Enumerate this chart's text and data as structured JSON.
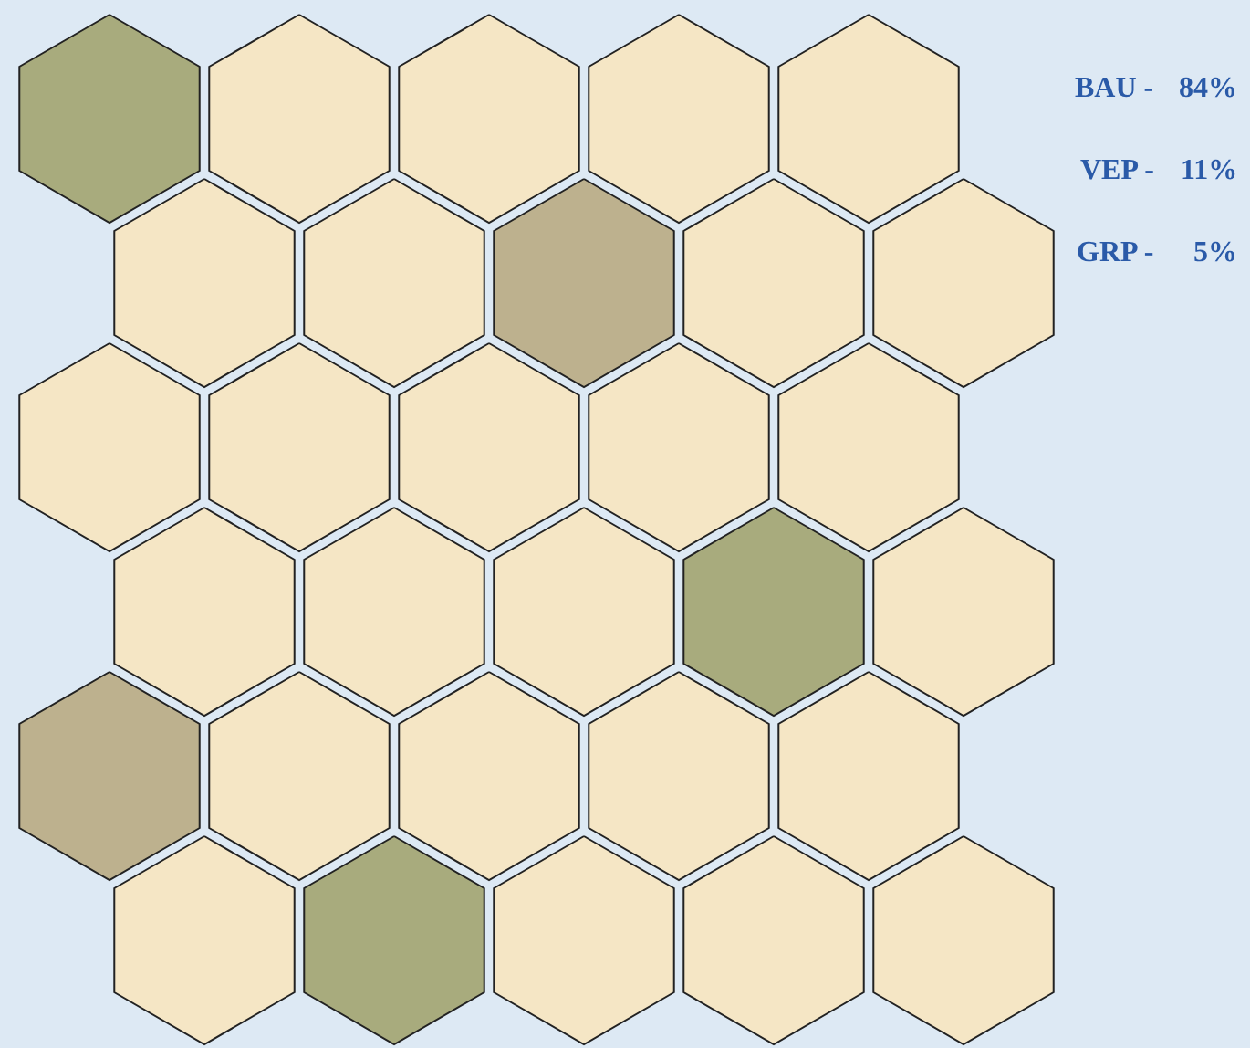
{
  "chart_data": {
    "type": "other",
    "categories": [
      "BAU -",
      "VEP -",
      "GRP -"
    ],
    "values": [
      84,
      11,
      5
    ],
    "value_labels": [
      "84%",
      "11%",
      "5%"
    ],
    "colors": [
      "#f5e6c5",
      "#a8ab7d",
      "#bdb18e"
    ]
  }
}
